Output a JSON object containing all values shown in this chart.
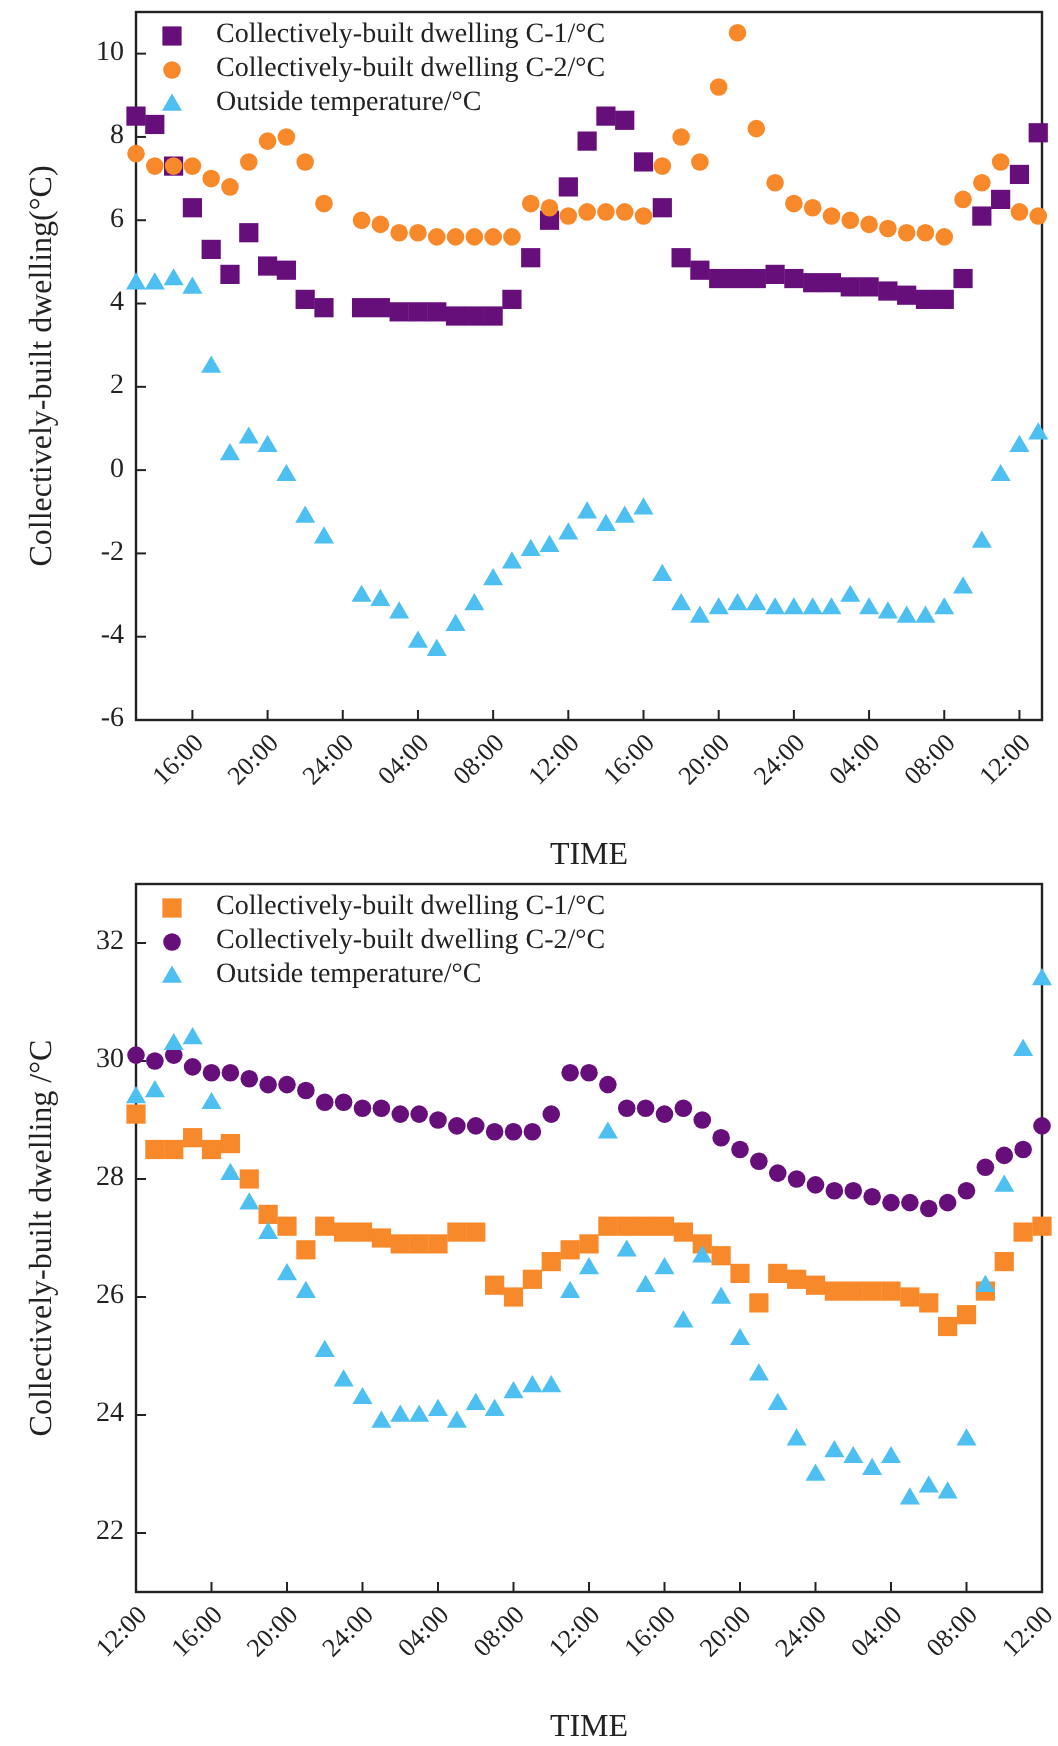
{
  "chart_data": [
    {
      "type": "scatter",
      "xlabel": "TIME",
      "ylabel": "Collectively-built dwelling(°C)",
      "legend": "top left",
      "grid": false,
      "x": [
        "2000-01-01T13:00",
        "2000-01-01T14:00",
        "2000-01-01T15:00",
        "2000-01-01T16:00",
        "2000-01-01T17:00",
        "2000-01-01T18:00",
        "2000-01-01T19:00",
        "2000-01-01T20:00",
        "2000-01-01T21:00",
        "2000-01-01T22:00",
        "2000-01-01T23:00",
        "2000-01-02T01:00",
        "2000-01-02T02:00",
        "2000-01-02T03:00",
        "2000-01-02T04:00",
        "2000-01-02T05:00",
        "2000-01-02T06:00",
        "2000-01-02T07:00",
        "2000-01-02T08:00",
        "2000-01-02T09:00",
        "2000-01-02T10:00",
        "2000-01-02T11:00",
        "2000-01-02T12:00",
        "2000-01-02T13:00",
        "2000-01-02T14:00",
        "2000-01-02T15:00",
        "2000-01-02T16:00",
        "2000-01-02T17:00",
        "2000-01-02T18:00",
        "2000-01-02T19:00",
        "2000-01-02T20:00",
        "2000-01-02T21:00",
        "2000-01-02T22:00",
        "2000-01-02T23:00",
        "2000-01-03T00:00",
        "2000-01-03T01:00",
        "2000-01-03T02:00",
        "2000-01-03T03:00",
        "2000-01-03T04:00",
        "2000-01-03T05:00",
        "2000-01-03T06:00",
        "2000-01-03T07:00",
        "2000-01-03T08:00",
        "2000-01-03T09:00",
        "2000-01-03T10:00",
        "2000-01-03T11:00",
        "2000-01-03T12:00",
        "2000-01-03T13:00"
      ],
      "xlim": [
        "2000-01-01T13:00",
        "2000-01-03T13:12"
      ],
      "xticks": [
        {
          "value": "2000-01-01T16:00",
          "label": "16:00"
        },
        {
          "value": "2000-01-01T20:00",
          "label": "20:00"
        },
        {
          "value": "2000-01-02T00:00",
          "label": "24:00"
        },
        {
          "value": "2000-01-02T04:00",
          "label": "04:00"
        },
        {
          "value": "2000-01-02T08:00",
          "label": "08:00"
        },
        {
          "value": "2000-01-02T12:00",
          "label": "12:00"
        },
        {
          "value": "2000-01-02T16:00",
          "label": "16:00"
        },
        {
          "value": "2000-01-02T20:00",
          "label": "20:00"
        },
        {
          "value": "2000-01-03T00:00",
          "label": "24:00"
        },
        {
          "value": "2000-01-03T04:00",
          "label": "04:00"
        },
        {
          "value": "2000-01-03T08:00",
          "label": "08:00"
        },
        {
          "value": "2000-01-03T12:00",
          "label": "12:00"
        }
      ],
      "ylim": [
        -6,
        11
      ],
      "yticks": [
        -6,
        -4,
        -2,
        0,
        2,
        4,
        6,
        8,
        10
      ],
      "series": [
        {
          "name": "Collectively-built dwelling C-1/°C",
          "color": "#660e7a",
          "marker": "square",
          "values": [
            8.5,
            8.3,
            7.3,
            6.3,
            5.3,
            4.7,
            5.7,
            4.9,
            4.8,
            4.1,
            3.9,
            3.9,
            3.9,
            3.8,
            3.8,
            3.8,
            3.7,
            3.7,
            3.7,
            4.1,
            5.1,
            6.0,
            6.8,
            7.9,
            8.5,
            8.4,
            7.4,
            6.3,
            5.1,
            4.8,
            4.6,
            4.6,
            4.6,
            4.7,
            4.6,
            4.5,
            4.5,
            4.4,
            4.4,
            4.3,
            4.2,
            4.1,
            4.1,
            4.6,
            6.1,
            6.5,
            7.1,
            8.1
          ]
        },
        {
          "name": "Collectively-built dwelling C-2/°C",
          "color": "#f7892b",
          "marker": "circle",
          "values": [
            7.6,
            7.3,
            7.3,
            7.3,
            7.0,
            6.8,
            7.4,
            7.9,
            8.0,
            7.4,
            6.4,
            6.0,
            5.9,
            5.7,
            5.7,
            5.6,
            5.6,
            5.6,
            5.6,
            5.6,
            6.4,
            6.3,
            6.1,
            6.2,
            6.2,
            6.2,
            6.1,
            7.3,
            8.0,
            7.4,
            9.2,
            10.5,
            8.2,
            6.9,
            6.4,
            6.3,
            6.1,
            6.0,
            5.9,
            5.8,
            5.7,
            5.7,
            5.6,
            6.5,
            6.9,
            7.4,
            6.2,
            6.1
          ]
        },
        {
          "name": "Outside temperature/°C",
          "color": "#4dbff0",
          "marker": "triangle",
          "values": [
            4.5,
            4.5,
            4.6,
            4.4,
            2.5,
            0.4,
            0.8,
            0.6,
            -0.1,
            -1.1,
            -1.6,
            -3.0,
            -3.1,
            -3.4,
            -4.1,
            -4.3,
            -3.7,
            -3.2,
            -2.6,
            -2.2,
            -1.9,
            -1.8,
            -1.5,
            -1.0,
            -1.3,
            -1.1,
            -0.9,
            -2.5,
            -3.2,
            -3.5,
            -3.3,
            -3.2,
            -3.2,
            -3.3,
            -3.3,
            -3.3,
            -3.3,
            -3.0,
            -3.3,
            -3.4,
            -3.5,
            -3.5,
            -3.3,
            -2.8,
            -1.7,
            -0.1,
            0.6,
            0.9
          ]
        }
      ]
    },
    {
      "type": "scatter",
      "xlabel": "TIME",
      "ylabel": "Collectively-built dwelling /°C",
      "legend": "top left",
      "grid": false,
      "x": [
        "2000-01-01T12:00",
        "2000-01-01T13:00",
        "2000-01-01T14:00",
        "2000-01-01T15:00",
        "2000-01-01T16:00",
        "2000-01-01T17:00",
        "2000-01-01T18:00",
        "2000-01-01T19:00",
        "2000-01-01T20:00",
        "2000-01-01T21:00",
        "2000-01-01T22:00",
        "2000-01-01T23:00",
        "2000-01-02T00:00",
        "2000-01-02T01:00",
        "2000-01-02T02:00",
        "2000-01-02T03:00",
        "2000-01-02T04:00",
        "2000-01-02T05:00",
        "2000-01-02T06:00",
        "2000-01-02T07:00",
        "2000-01-02T08:00",
        "2000-01-02T09:00",
        "2000-01-02T10:00",
        "2000-01-02T11:00",
        "2000-01-02T12:00",
        "2000-01-02T13:00",
        "2000-01-02T14:00",
        "2000-01-02T15:00",
        "2000-01-02T16:00",
        "2000-01-02T17:00",
        "2000-01-02T18:00",
        "2000-01-02T19:00",
        "2000-01-02T20:00",
        "2000-01-02T21:00",
        "2000-01-02T22:00",
        "2000-01-02T23:00",
        "2000-01-03T00:00",
        "2000-01-03T01:00",
        "2000-01-03T02:00",
        "2000-01-03T03:00",
        "2000-01-03T04:00",
        "2000-01-03T05:00",
        "2000-01-03T06:00",
        "2000-01-03T07:00",
        "2000-01-03T08:00",
        "2000-01-03T09:00",
        "2000-01-03T10:00",
        "2000-01-03T11:00",
        "2000-01-03T12:00"
      ],
      "xlim": [
        "2000-01-01T12:00",
        "2000-01-03T12:00"
      ],
      "xticks": [
        {
          "value": "2000-01-01T12:00",
          "label": "12:00"
        },
        {
          "value": "2000-01-01T16:00",
          "label": "16:00"
        },
        {
          "value": "2000-01-01T20:00",
          "label": "20:00"
        },
        {
          "value": "2000-01-02T00:00",
          "label": "24:00"
        },
        {
          "value": "2000-01-02T04:00",
          "label": "04:00"
        },
        {
          "value": "2000-01-02T08:00",
          "label": "08:00"
        },
        {
          "value": "2000-01-02T12:00",
          "label": "12:00"
        },
        {
          "value": "2000-01-02T16:00",
          "label": "16:00"
        },
        {
          "value": "2000-01-02T20:00",
          "label": "20:00"
        },
        {
          "value": "2000-01-03T00:00",
          "label": "24:00"
        },
        {
          "value": "2000-01-03T04:00",
          "label": "04:00"
        },
        {
          "value": "2000-01-03T08:00",
          "label": "08:00"
        },
        {
          "value": "2000-01-03T12:00",
          "label": "12:00"
        }
      ],
      "ylim": [
        21,
        33
      ],
      "yticks": [
        22,
        24,
        26,
        28,
        30,
        32
      ],
      "series": [
        {
          "name": "Collectively-built dwelling C-1/°C",
          "color": "#f7892b",
          "marker": "square",
          "values": [
            29.1,
            28.5,
            28.5,
            28.7,
            28.5,
            28.6,
            28.0,
            27.4,
            27.2,
            26.8,
            27.2,
            27.1,
            27.1,
            27.0,
            26.9,
            26.9,
            26.9,
            27.1,
            27.1,
            26.2,
            26.0,
            26.3,
            26.6,
            26.8,
            26.9,
            27.2,
            27.2,
            27.2,
            27.2,
            27.1,
            26.9,
            26.7,
            26.4,
            25.9,
            26.4,
            26.3,
            26.2,
            26.1,
            26.1,
            26.1,
            26.1,
            26.0,
            25.9,
            25.5,
            25.7,
            26.1,
            26.6,
            27.1,
            27.2
          ]
        },
        {
          "name": "Collectively-built dwelling C-2/°C",
          "color": "#660e7a",
          "marker": "circle",
          "values": [
            30.1,
            30.0,
            30.1,
            29.9,
            29.8,
            29.8,
            29.7,
            29.6,
            29.6,
            29.5,
            29.3,
            29.3,
            29.2,
            29.2,
            29.1,
            29.1,
            29.0,
            28.9,
            28.9,
            28.8,
            28.8,
            28.8,
            29.1,
            29.8,
            29.8,
            29.6,
            29.2,
            29.2,
            29.1,
            29.2,
            29.0,
            28.7,
            28.5,
            28.3,
            28.1,
            28.0,
            27.9,
            27.8,
            27.8,
            27.7,
            27.6,
            27.6,
            27.5,
            27.6,
            27.8,
            28.2,
            28.4,
            28.5,
            28.9
          ]
        },
        {
          "name": "Outside temperature/°C",
          "color": "#4dbff0",
          "marker": "triangle",
          "values": [
            29.4,
            29.5,
            30.3,
            30.4,
            29.3,
            28.1,
            27.6,
            27.1,
            26.4,
            26.1,
            25.1,
            24.6,
            24.3,
            23.9,
            24.0,
            24.0,
            24.1,
            23.9,
            24.2,
            24.1,
            24.4,
            24.5,
            24.5,
            26.1,
            26.5,
            28.8,
            26.8,
            26.2,
            26.5,
            25.6,
            26.7,
            26.0,
            25.3,
            24.7,
            24.2,
            23.6,
            23.0,
            23.4,
            23.3,
            23.1,
            23.3,
            22.6,
            22.8,
            22.7,
            23.6,
            26.2,
            27.9,
            30.2,
            31.4
          ]
        }
      ]
    }
  ]
}
